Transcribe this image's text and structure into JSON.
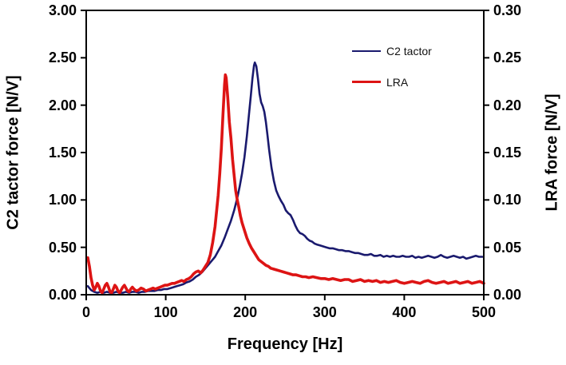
{
  "figure": {
    "background": "#ffffff"
  },
  "axes": {
    "x": {
      "title": "Frequency [Hz]",
      "min": 0,
      "max": 500,
      "tick_step": 100,
      "tick_decimals": 0
    },
    "y_left": {
      "title": "C2 tactor force [N/V]",
      "min": 0,
      "max": 3,
      "tick_step": 0.5,
      "tick_decimals": 2
    },
    "y_right": {
      "title": "LRA force [N/V]",
      "min": 0,
      "max": 0.3,
      "tick_step": 0.05,
      "tick_decimals": 2
    }
  },
  "legend": {
    "items": [
      {
        "label": "C2 tactor",
        "color": "#1a1a6e",
        "thickness": 2.6
      },
      {
        "label": "LRA",
        "color": "#dd1414",
        "thickness": 3.6
      }
    ]
  },
  "chart_data": {
    "type": "line",
    "title": "",
    "xlabel": "Frequency [Hz]",
    "ylabel_left": "C2 tactor force [N/V]",
    "ylabel_right": "LRA force [N/V]",
    "xlim": [
      0,
      500
    ],
    "ylim_left": [
      0,
      3
    ],
    "ylim_right": [
      0,
      0.3
    ],
    "grid": false,
    "legend_position": "upper-center-right",
    "x_tick_labels": [
      "0",
      "100",
      "200",
      "300",
      "400",
      "500"
    ],
    "y_left_tick_labels": [
      "0.00",
      "0.50",
      "1.00",
      "1.50",
      "2.00",
      "2.50",
      "3.00"
    ],
    "y_right_tick_labels": [
      "0.00",
      "0.05",
      "0.10",
      "0.15",
      "0.20",
      "0.25",
      "0.30"
    ],
    "series": [
      {
        "name": "C2 tactor",
        "axis": "left",
        "color": "#1a1a6e",
        "width": 2.6,
        "peak": {
          "x": 212,
          "y": 2.45
        },
        "points": [
          [
            2,
            0.09
          ],
          [
            6,
            0.05
          ],
          [
            10,
            0.03
          ],
          [
            14,
            0.02
          ],
          [
            18,
            0.03
          ],
          [
            22,
            0.02
          ],
          [
            26,
            0.03
          ],
          [
            30,
            0.02
          ],
          [
            34,
            0.02
          ],
          [
            38,
            0.03
          ],
          [
            42,
            0.02
          ],
          [
            46,
            0.02
          ],
          [
            50,
            0.03
          ],
          [
            54,
            0.02
          ],
          [
            58,
            0.03
          ],
          [
            62,
            0.03
          ],
          [
            66,
            0.02
          ],
          [
            70,
            0.03
          ],
          [
            74,
            0.03
          ],
          [
            78,
            0.04
          ],
          [
            82,
            0.04
          ],
          [
            86,
            0.04
          ],
          [
            90,
            0.05
          ],
          [
            94,
            0.05
          ],
          [
            98,
            0.06
          ],
          [
            102,
            0.06
          ],
          [
            106,
            0.07
          ],
          [
            110,
            0.08
          ],
          [
            114,
            0.09
          ],
          [
            118,
            0.1
          ],
          [
            122,
            0.11
          ],
          [
            126,
            0.13
          ],
          [
            130,
            0.14
          ],
          [
            134,
            0.16
          ],
          [
            138,
            0.19
          ],
          [
            142,
            0.21
          ],
          [
            146,
            0.24
          ],
          [
            150,
            0.28
          ],
          [
            154,
            0.32
          ],
          [
            158,
            0.36
          ],
          [
            162,
            0.4
          ],
          [
            166,
            0.46
          ],
          [
            170,
            0.52
          ],
          [
            174,
            0.6
          ],
          [
            178,
            0.69
          ],
          [
            182,
            0.78
          ],
          [
            186,
            0.89
          ],
          [
            190,
            1.02
          ],
          [
            193,
            1.14
          ],
          [
            196,
            1.28
          ],
          [
            199,
            1.45
          ],
          [
            202,
            1.67
          ],
          [
            205,
            1.93
          ],
          [
            207,
            2.1
          ],
          [
            209,
            2.28
          ],
          [
            211,
            2.42
          ],
          [
            212,
            2.45
          ],
          [
            214,
            2.41
          ],
          [
            216,
            2.28
          ],
          [
            218,
            2.12
          ],
          [
            220,
            2.03
          ],
          [
            222,
            1.99
          ],
          [
            224,
            1.93
          ],
          [
            226,
            1.82
          ],
          [
            228,
            1.68
          ],
          [
            230,
            1.53
          ],
          [
            233,
            1.34
          ],
          [
            236,
            1.2
          ],
          [
            239,
            1.1
          ],
          [
            242,
            1.04
          ],
          [
            245,
            0.99
          ],
          [
            248,
            0.95
          ],
          [
            251,
            0.89
          ],
          [
            254,
            0.86
          ],
          [
            257,
            0.84
          ],
          [
            260,
            0.79
          ],
          [
            263,
            0.73
          ],
          [
            266,
            0.68
          ],
          [
            269,
            0.65
          ],
          [
            272,
            0.64
          ],
          [
            275,
            0.62
          ],
          [
            278,
            0.59
          ],
          [
            281,
            0.57
          ],
          [
            284,
            0.56
          ],
          [
            287,
            0.54
          ],
          [
            290,
            0.53
          ],
          [
            294,
            0.52
          ],
          [
            298,
            0.51
          ],
          [
            302,
            0.5
          ],
          [
            306,
            0.49
          ],
          [
            310,
            0.49
          ],
          [
            314,
            0.48
          ],
          [
            318,
            0.47
          ],
          [
            322,
            0.47
          ],
          [
            326,
            0.46
          ],
          [
            330,
            0.46
          ],
          [
            334,
            0.45
          ],
          [
            338,
            0.44
          ],
          [
            342,
            0.44
          ],
          [
            346,
            0.43
          ],
          [
            350,
            0.42
          ],
          [
            354,
            0.42
          ],
          [
            358,
            0.43
          ],
          [
            362,
            0.41
          ],
          [
            366,
            0.41
          ],
          [
            370,
            0.42
          ],
          [
            374,
            0.4
          ],
          [
            378,
            0.41
          ],
          [
            382,
            0.4
          ],
          [
            386,
            0.41
          ],
          [
            390,
            0.4
          ],
          [
            394,
            0.4
          ],
          [
            398,
            0.41
          ],
          [
            402,
            0.4
          ],
          [
            406,
            0.4
          ],
          [
            410,
            0.41
          ],
          [
            414,
            0.39
          ],
          [
            418,
            0.4
          ],
          [
            422,
            0.39
          ],
          [
            426,
            0.4
          ],
          [
            430,
            0.41
          ],
          [
            434,
            0.4
          ],
          [
            438,
            0.39
          ],
          [
            442,
            0.4
          ],
          [
            446,
            0.42
          ],
          [
            450,
            0.4
          ],
          [
            454,
            0.39
          ],
          [
            458,
            0.4
          ],
          [
            462,
            0.41
          ],
          [
            466,
            0.4
          ],
          [
            470,
            0.39
          ],
          [
            474,
            0.4
          ],
          [
            478,
            0.38
          ],
          [
            482,
            0.39
          ],
          [
            486,
            0.4
          ],
          [
            490,
            0.41
          ],
          [
            494,
            0.4
          ],
          [
            498,
            0.4
          ]
        ]
      },
      {
        "name": "LRA",
        "axis": "right",
        "color": "#dd1414",
        "width": 3.6,
        "peak": {
          "x": 175,
          "y": 0.232
        },
        "points": [
          [
            2,
            0.039
          ],
          [
            4,
            0.03
          ],
          [
            6,
            0.018
          ],
          [
            8,
            0.01
          ],
          [
            10,
            0.005
          ],
          [
            12,
            0.008
          ],
          [
            14,
            0.012
          ],
          [
            16,
            0.009
          ],
          [
            18,
            0.004
          ],
          [
            20,
            0.002
          ],
          [
            22,
            0.006
          ],
          [
            24,
            0.01
          ],
          [
            26,
            0.012
          ],
          [
            28,
            0.008
          ],
          [
            30,
            0.003
          ],
          [
            32,
            0.002
          ],
          [
            34,
            0.006
          ],
          [
            36,
            0.01
          ],
          [
            38,
            0.008
          ],
          [
            40,
            0.004
          ],
          [
            42,
            0.002
          ],
          [
            44,
            0.005
          ],
          [
            46,
            0.008
          ],
          [
            48,
            0.01
          ],
          [
            50,
            0.007
          ],
          [
            52,
            0.004
          ],
          [
            54,
            0.003
          ],
          [
            56,
            0.006
          ],
          [
            58,
            0.008
          ],
          [
            60,
            0.006
          ],
          [
            63,
            0.004
          ],
          [
            66,
            0.005
          ],
          [
            69,
            0.007
          ],
          [
            72,
            0.006
          ],
          [
            75,
            0.004
          ],
          [
            78,
            0.005
          ],
          [
            81,
            0.006
          ],
          [
            84,
            0.007
          ],
          [
            87,
            0.006
          ],
          [
            90,
            0.007
          ],
          [
            93,
            0.008
          ],
          [
            96,
            0.009
          ],
          [
            99,
            0.01
          ],
          [
            102,
            0.01
          ],
          [
            105,
            0.011
          ],
          [
            108,
            0.012
          ],
          [
            111,
            0.012
          ],
          [
            114,
            0.013
          ],
          [
            117,
            0.014
          ],
          [
            120,
            0.015
          ],
          [
            123,
            0.014
          ],
          [
            126,
            0.016
          ],
          [
            129,
            0.017
          ],
          [
            132,
            0.019
          ],
          [
            135,
            0.022
          ],
          [
            138,
            0.024
          ],
          [
            141,
            0.025
          ],
          [
            144,
            0.023
          ],
          [
            147,
            0.026
          ],
          [
            150,
            0.03
          ],
          [
            153,
            0.034
          ],
          [
            156,
            0.042
          ],
          [
            159,
            0.055
          ],
          [
            162,
            0.072
          ],
          [
            164,
            0.088
          ],
          [
            166,
            0.105
          ],
          [
            168,
            0.128
          ],
          [
            170,
            0.155
          ],
          [
            172,
            0.19
          ],
          [
            174,
            0.222
          ],
          [
            175,
            0.232
          ],
          [
            176,
            0.229
          ],
          [
            178,
            0.208
          ],
          [
            180,
            0.182
          ],
          [
            182,
            0.165
          ],
          [
            184,
            0.143
          ],
          [
            186,
            0.126
          ],
          [
            188,
            0.11
          ],
          [
            190,
            0.1
          ],
          [
            192,
            0.092
          ],
          [
            194,
            0.083
          ],
          [
            196,
            0.076
          ],
          [
            199,
            0.068
          ],
          [
            202,
            0.06
          ],
          [
            205,
            0.054
          ],
          [
            208,
            0.049
          ],
          [
            211,
            0.045
          ],
          [
            214,
            0.041
          ],
          [
            217,
            0.037
          ],
          [
            220,
            0.035
          ],
          [
            223,
            0.033
          ],
          [
            226,
            0.031
          ],
          [
            229,
            0.03
          ],
          [
            232,
            0.028
          ],
          [
            236,
            0.027
          ],
          [
            240,
            0.026
          ],
          [
            244,
            0.025
          ],
          [
            248,
            0.024
          ],
          [
            252,
            0.023
          ],
          [
            256,
            0.022
          ],
          [
            260,
            0.021
          ],
          [
            264,
            0.021
          ],
          [
            268,
            0.02
          ],
          [
            272,
            0.019
          ],
          [
            276,
            0.019
          ],
          [
            280,
            0.018
          ],
          [
            285,
            0.019
          ],
          [
            290,
            0.018
          ],
          [
            295,
            0.017
          ],
          [
            300,
            0.017
          ],
          [
            305,
            0.016
          ],
          [
            310,
            0.017
          ],
          [
            315,
            0.016
          ],
          [
            320,
            0.015
          ],
          [
            325,
            0.016
          ],
          [
            330,
            0.016
          ],
          [
            335,
            0.014
          ],
          [
            340,
            0.015
          ],
          [
            345,
            0.016
          ],
          [
            350,
            0.014
          ],
          [
            355,
            0.015
          ],
          [
            360,
            0.014
          ],
          [
            365,
            0.015
          ],
          [
            370,
            0.013
          ],
          [
            375,
            0.014
          ],
          [
            380,
            0.013
          ],
          [
            385,
            0.014
          ],
          [
            390,
            0.015
          ],
          [
            395,
            0.013
          ],
          [
            400,
            0.012
          ],
          [
            405,
            0.013
          ],
          [
            410,
            0.014
          ],
          [
            415,
            0.013
          ],
          [
            420,
            0.012
          ],
          [
            425,
            0.014
          ],
          [
            430,
            0.015
          ],
          [
            435,
            0.013
          ],
          [
            440,
            0.012
          ],
          [
            445,
            0.013
          ],
          [
            450,
            0.014
          ],
          [
            455,
            0.012
          ],
          [
            460,
            0.013
          ],
          [
            465,
            0.014
          ],
          [
            470,
            0.012
          ],
          [
            475,
            0.013
          ],
          [
            480,
            0.014
          ],
          [
            485,
            0.012
          ],
          [
            490,
            0.013
          ],
          [
            495,
            0.014
          ],
          [
            500,
            0.012
          ]
        ]
      }
    ]
  }
}
